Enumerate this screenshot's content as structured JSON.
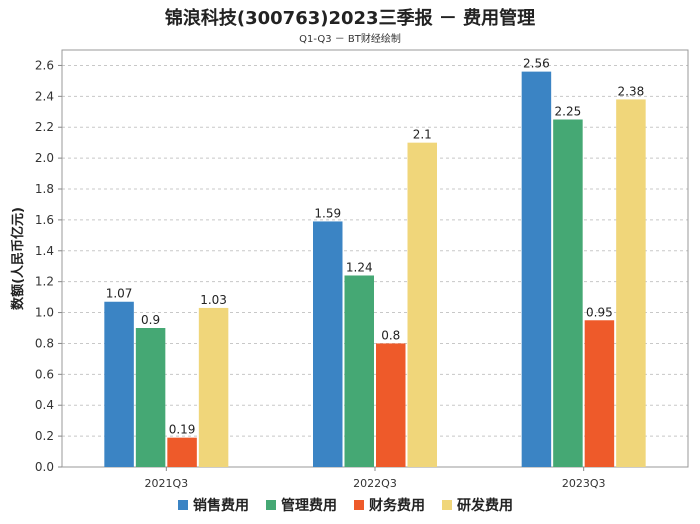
{
  "chart_data": {
    "type": "bar",
    "title": "锦浪科技(300763)2023三季报 － 费用管理",
    "subtitle": "Q1-Q3 － BT财经绘制",
    "xlabel": "",
    "ylabel": "数额(人民币亿元)",
    "ylim": [
      0,
      2.7
    ],
    "yticks": [
      0.0,
      0.2,
      0.4,
      0.6,
      0.8,
      1.0,
      1.2,
      1.4,
      1.6,
      1.8,
      2.0,
      2.2,
      2.4,
      2.6
    ],
    "grid": true,
    "legend_position": "bottom",
    "categories": [
      "2021Q3",
      "2022Q3",
      "2023Q3"
    ],
    "series": [
      {
        "name": "销售费用",
        "color": "#3b84c4",
        "values": [
          1.07,
          1.59,
          2.56
        ]
      },
      {
        "name": "管理费用",
        "color": "#45a874",
        "values": [
          0.9,
          1.24,
          2.25
        ]
      },
      {
        "name": "财务费用",
        "color": "#ee5a2a",
        "values": [
          0.19,
          0.8,
          0.95
        ]
      },
      {
        "name": "研发费用",
        "color": "#f0d67a",
        "values": [
          1.03,
          2.1,
          2.38
        ]
      }
    ]
  }
}
